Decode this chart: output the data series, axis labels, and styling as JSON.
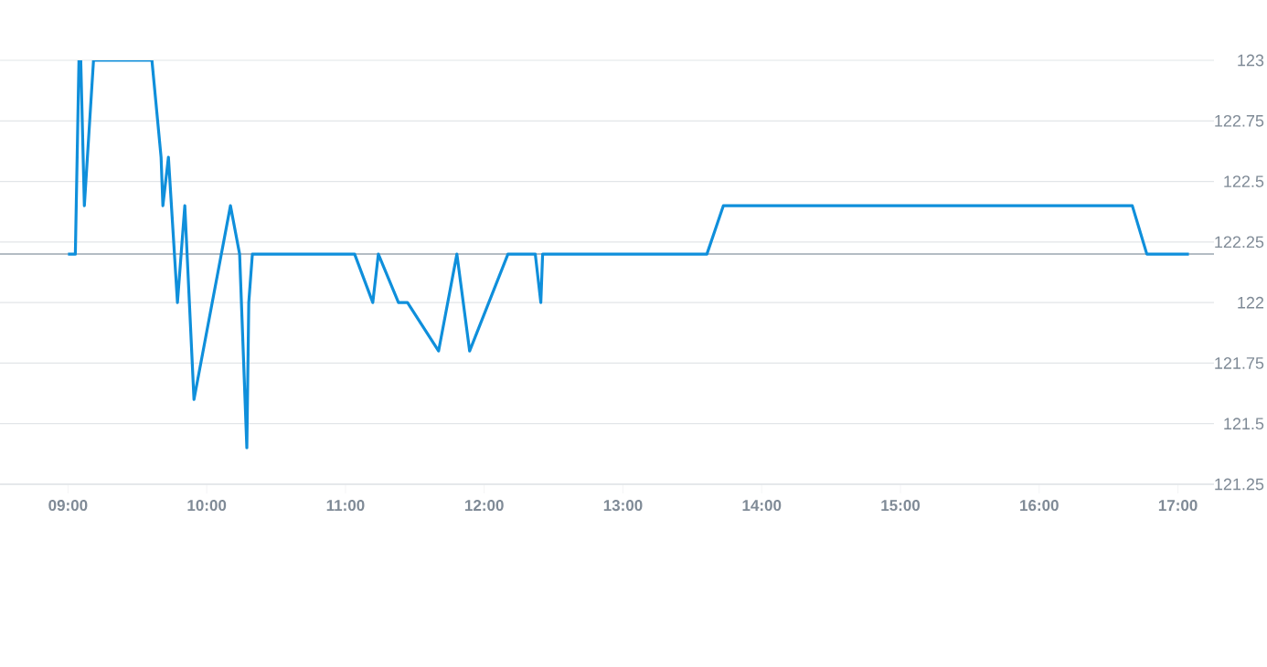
{
  "chart_data": {
    "type": "line",
    "x": [
      9.0,
      9.053,
      9.079,
      9.092,
      9.118,
      9.184,
      9.605,
      9.671,
      9.684,
      9.724,
      9.789,
      9.842,
      9.908,
      10.171,
      10.237,
      10.289,
      10.303,
      10.329,
      11.066,
      11.197,
      11.237,
      11.382,
      11.447,
      11.671,
      11.803,
      11.895,
      12.171,
      12.368,
      12.408,
      12.421,
      13.605,
      13.724,
      16.671,
      16.776,
      17.079
    ],
    "series": [
      {
        "color": "#0f8fdb",
        "values": [
          122.2,
          122.2,
          123.0,
          123.0,
          122.4,
          123.0,
          123.0,
          122.6,
          122.4,
          122.6,
          122.0,
          122.4,
          121.6,
          122.4,
          122.2,
          121.4,
          122.0,
          122.2,
          122.2,
          122.0,
          122.2,
          122.0,
          122.0,
          121.8,
          122.2,
          121.8,
          122.2,
          122.2,
          122.0,
          122.2,
          122.2,
          122.4,
          122.4,
          122.2,
          122.2
        ]
      }
    ],
    "xlim": [
      8.51,
      17.26
    ],
    "xticks": [
      {
        "value": 9,
        "label": "09:00"
      },
      {
        "value": 10,
        "label": "10:00"
      },
      {
        "value": 11,
        "label": "11:00"
      },
      {
        "value": 12,
        "label": "12:00"
      },
      {
        "value": 13,
        "label": "13:00"
      },
      {
        "value": 14,
        "label": "14:00"
      },
      {
        "value": 15,
        "label": "15:00"
      },
      {
        "value": 16,
        "label": "16:00"
      },
      {
        "value": 17,
        "label": "17:00"
      }
    ],
    "ylim": [
      121.25,
      123.0
    ],
    "yticks": [
      121.25,
      121.5,
      121.75,
      122,
      122.25,
      122.5,
      122.75,
      123
    ],
    "ref_lines": [
      {
        "axis": "y",
        "value": 122.2,
        "color": "#b4bcc4"
      }
    ],
    "grid": "y",
    "marker": "none",
    "line_style": "solid"
  }
}
